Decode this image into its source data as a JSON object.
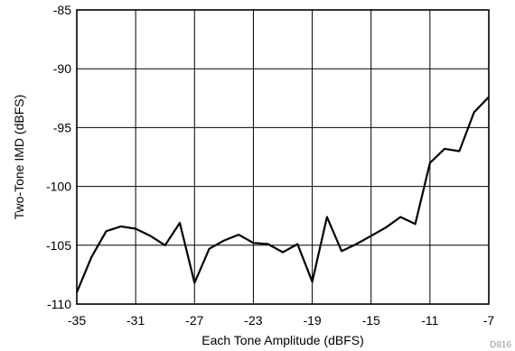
{
  "chart_data": {
    "type": "line",
    "xlabel": "Each Tone Amplitude (dBFS)",
    "ylabel": "Two-Tone IMD (dBFS)",
    "xlim": [
      -35,
      -7
    ],
    "ylim": [
      -110,
      -85
    ],
    "xticks": [
      -35,
      -31,
      -27,
      -23,
      -19,
      -15,
      -11,
      -7
    ],
    "yticks": [
      -85,
      -90,
      -95,
      -100,
      -105,
      -110
    ],
    "grid": true,
    "series": [
      {
        "x": [
          -35,
          -34,
          -33,
          -32,
          -31,
          -30,
          -29,
          -28,
          -27,
          -26,
          -25,
          -24,
          -23,
          -22,
          -21,
          -20,
          -19,
          -18,
          -17,
          -16,
          -15,
          -14,
          -13,
          -12,
          -11,
          -10,
          -9,
          -8,
          -7
        ],
        "y": [
          -109,
          -106,
          -103.8,
          -103.4,
          -103.6,
          -104.2,
          -105,
          -103.1,
          -108.2,
          -105.3,
          -104.6,
          -104.1,
          -104.8,
          -104.9,
          -105.6,
          -104.9,
          -108.1,
          -102.6,
          -105.5,
          -104.9,
          -104.2,
          -103.5,
          -102.6,
          -103.2,
          -98,
          -96.8,
          -97,
          -93.7,
          -92.4
        ]
      }
    ]
  },
  "watermark": "D816"
}
